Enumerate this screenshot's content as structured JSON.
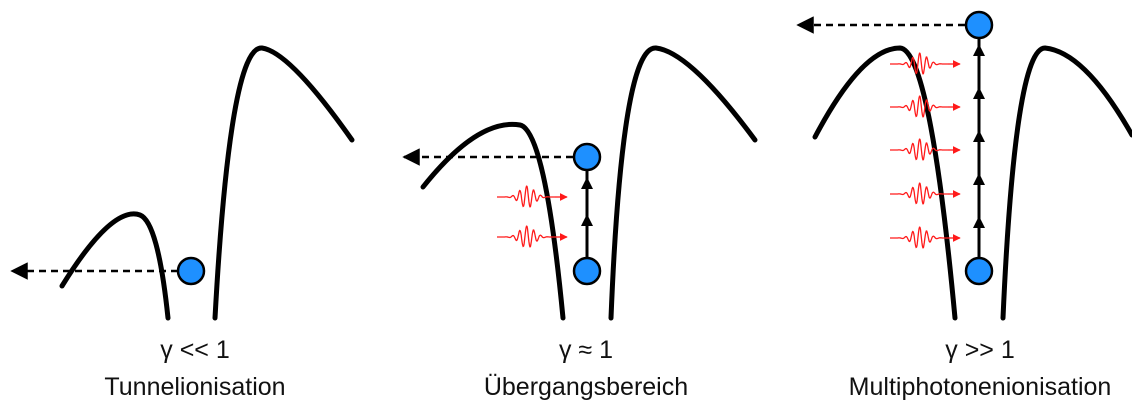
{
  "colors": {
    "curve": "#000000",
    "electron": "#1e90ff",
    "electron_stroke": "#000000",
    "photon": "#ff1a1a",
    "arrow": "#000000"
  },
  "panels": [
    {
      "gamma": "γ << 1",
      "regime": "Tunnelionisation",
      "photons": 0
    },
    {
      "gamma": "γ ≈ 1",
      "regime": "Übergangsbereich",
      "photons": 2
    },
    {
      "gamma": "γ >> 1",
      "regime": "Multiphotonenionisation",
      "photons": 5
    }
  ]
}
